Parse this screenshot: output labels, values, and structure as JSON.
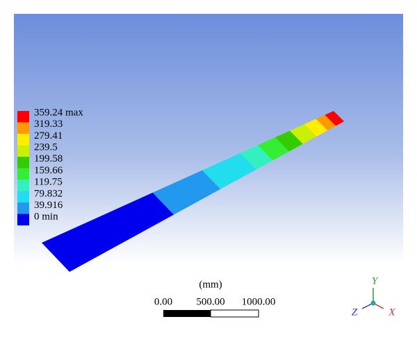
{
  "legend": {
    "items": [
      {
        "label": "359.24 max",
        "color": "#ff0000"
      },
      {
        "label": "319.33",
        "color": "#ff9900"
      },
      {
        "label": "279.41",
        "color": "#ffee00"
      },
      {
        "label": "239.5",
        "color": "#c8f000"
      },
      {
        "label": "199.58",
        "color": "#33cc00"
      },
      {
        "label": "159.66",
        "color": "#33ee33"
      },
      {
        "label": "119.75",
        "color": "#33f0c0"
      },
      {
        "label": "79.832",
        "color": "#22ddee"
      },
      {
        "label": "39.916",
        "color": "#2299ee"
      },
      {
        "label": "0 min",
        "color": "#0000ee"
      }
    ]
  },
  "scale_bar": {
    "unit": "(mm)",
    "labels": [
      "0.00",
      "500.00",
      "1000.00"
    ]
  },
  "triad": {
    "x": "X",
    "y": "Y",
    "z": "Z"
  }
}
